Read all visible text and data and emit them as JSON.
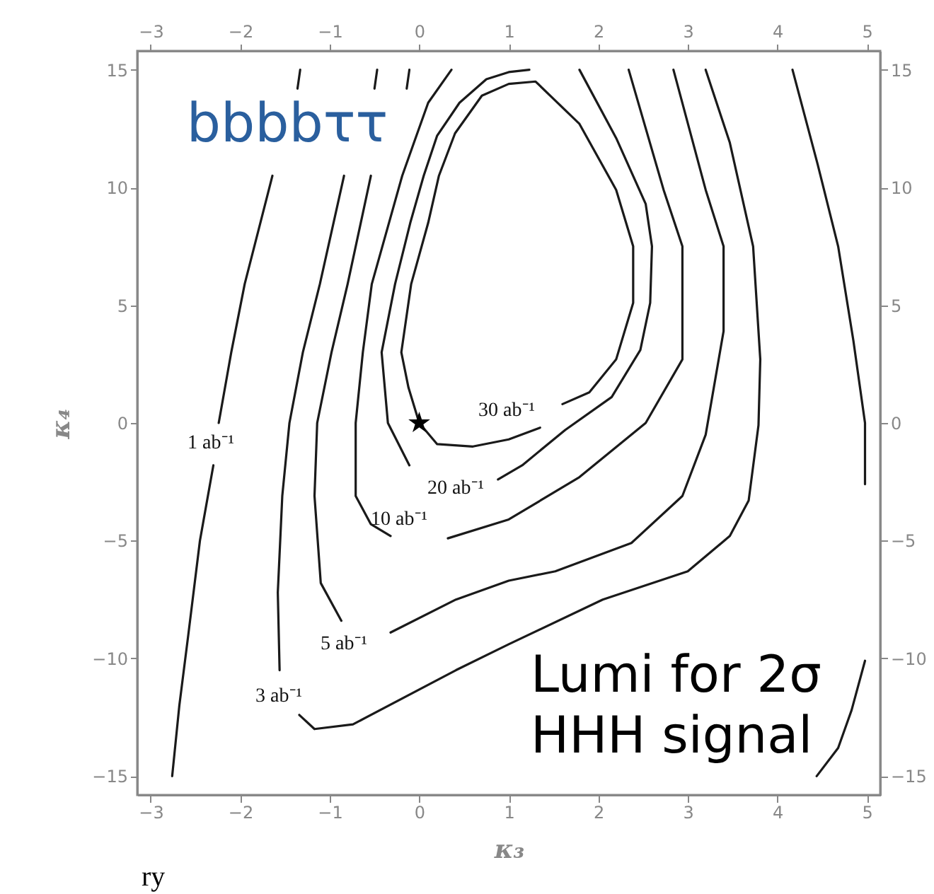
{
  "chart_data": {
    "type": "line",
    "xlabel": "κ₃",
    "ylabel": "κ₄",
    "xlim": [
      -3.15,
      5.15
    ],
    "ylim": [
      -15.8,
      15.8
    ],
    "xticks": [
      -3,
      -2,
      -1,
      0,
      1,
      2,
      3,
      4,
      5
    ],
    "yticks": [
      -15,
      -10,
      -5,
      0,
      5,
      10,
      15
    ],
    "x2lim": [
      -3.15,
      5.15
    ],
    "x2ticks": [
      -3,
      -2,
      -1,
      0,
      1,
      2,
      3,
      4,
      5
    ],
    "y2lim": [
      -15.8,
      15.8
    ],
    "y2ticks": [
      -15,
      -10,
      -5,
      0,
      5,
      10,
      15
    ],
    "grid": false,
    "series": [
      {
        "type": "line",
        "color": "#1a1a1a",
        "line_style": "solid",
        "marker": "none",
        "x": [
          -1.33,
          -1.36,
          null,
          -1.64,
          -1.95,
          -2.1,
          -2.24,
          null,
          -2.3,
          -2.45,
          -2.58,
          -2.68,
          -2.76,
          null,
          4.17,
          4.45,
          4.68,
          4.85,
          4.98,
          4.98,
          null,
          4.98,
          4.83,
          4.68,
          4.44
        ],
        "values": [
          15,
          14.2,
          null,
          10.5,
          5.9,
          3,
          0,
          null,
          -1.8,
          -5,
          -9,
          -12,
          -15,
          null,
          15,
          11,
          7.5,
          3.5,
          0,
          -2.6,
          null,
          -10.1,
          -12.2,
          -13.8,
          -15
        ]
      },
      {
        "color": "#1a1a1a",
        "line_style": "solid",
        "marker": "none",
        "x": [
          -0.47,
          -0.5,
          null,
          -0.84,
          -1.11,
          -1.3,
          -1.45,
          -1.53,
          -1.58,
          -1.56,
          null,
          -1.34,
          -1.17,
          -0.74,
          0.41,
          1.0,
          2.05,
          3.0,
          3.47,
          3.68,
          3.79,
          3.81,
          3.73,
          3.47,
          3.2
        ],
        "values": [
          15,
          14.2,
          null,
          10.5,
          5.9,
          3,
          0,
          -3.1,
          -7.2,
          -10.5,
          null,
          -12.4,
          -13,
          -12.8,
          -10.5,
          -9.4,
          -7.5,
          -6.3,
          -4.8,
          -3.3,
          -0.1,
          2.7,
          7.5,
          11.9,
          15
        ]
      },
      {
        "color": "#1a1a1a",
        "line_style": "solid",
        "marker": "none",
        "x": [
          -0.11,
          -0.14,
          null,
          -0.54,
          -0.8,
          -0.98,
          -1.14,
          -1.17,
          -1.1,
          -0.87,
          null,
          -0.32,
          0.41,
          1.0,
          1.52,
          2.37,
          2.94,
          3.2,
          3.4,
          3.4,
          3.2,
          2.84
        ],
        "values": [
          15,
          14.2,
          null,
          10.5,
          5.9,
          3,
          0,
          -3.1,
          -6.8,
          -8.4,
          null,
          -8.9,
          -7.5,
          -6.7,
          -6.3,
          -5.1,
          -3.1,
          -0.5,
          3.9,
          7.5,
          9.9,
          15
        ]
      },
      {
        "color": "#1a1a1a",
        "line_style": "solid",
        "marker": "none",
        "x": [
          0.36,
          0.1,
          -0.05,
          -0.19,
          -0.53,
          -0.63,
          -0.71,
          -0.71,
          -0.54,
          -0.32,
          null,
          0.32,
          1.0,
          1.79,
          2.53,
          2.94,
          2.94,
          2.73,
          2.34
        ],
        "values": [
          15,
          13.6,
          12,
          10.5,
          5.9,
          3,
          0,
          -3.1,
          -4.3,
          -4.8,
          null,
          -4.9,
          -4.1,
          -2.3,
          0,
          2.7,
          7.5,
          9.9,
          15
        ]
      },
      {
        "color": "#1a1a1a",
        "line_style": "solid",
        "marker": "none",
        "x": [
          -0.11,
          -0.35,
          -0.42,
          -0.27,
          -0.1,
          0.05,
          0.2,
          0.45,
          0.75,
          1.0,
          1.23,
          null,
          1.79,
          2.2,
          2.53,
          2.6,
          2.58,
          2.47,
          2.15,
          1.63,
          1.15,
          0.88
        ],
        "values": [
          -1.8,
          0,
          3,
          5.9,
          8.5,
          10.5,
          12.2,
          13.6,
          14.6,
          14.9,
          15,
          null,
          15,
          12.1,
          9.3,
          7.5,
          5.1,
          3.1,
          1.1,
          -0.3,
          -1.8,
          -2.4
        ]
      },
      {
        "color": "#1a1a1a",
        "line_style": "solid",
        "marker": "none",
        "x": [
          1.6,
          1.9,
          2.2,
          2.39,
          2.39,
          2.2,
          1.79,
          1.3,
          1.0,
          0.7,
          0.4,
          0.22,
          0.1,
          -0.09,
          -0.2,
          -0.12,
          0,
          0.2,
          0.6,
          1.0,
          1.35
        ],
        "values": [
          0.8,
          1.3,
          2.7,
          5.1,
          7.5,
          9.9,
          12.7,
          14.5,
          14.4,
          13.9,
          12.3,
          10.5,
          8.5,
          5.9,
          3,
          1.5,
          0,
          -0.9,
          -1.0,
          -0.7,
          -0.2
        ]
      },
      {
        "type": "scatter",
        "color": "#000000",
        "marker": "star",
        "x": [
          0
        ],
        "values": [
          0
        ]
      }
    ],
    "annotations": [
      "bbbbττ",
      "Lumi for 2σ\nHHH signal",
      "ry",
      "1 ab⁻¹",
      "3 ab⁻¹",
      "5 ab⁻¹",
      "10 ab⁻¹",
      "20 ab⁻¹",
      "30 ab⁻¹"
    ]
  }
}
